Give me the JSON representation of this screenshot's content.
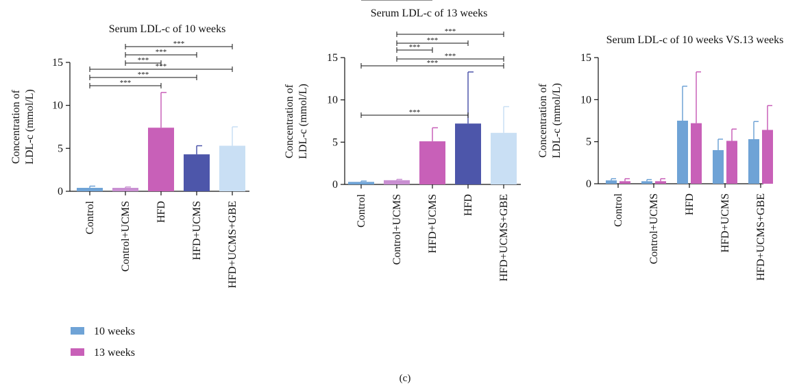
{
  "chart_data": [
    {
      "type": "bar",
      "title": "Serum LDL-c of 10 weeks",
      "ylabel": [
        "Concentration of",
        "LDL-c (mmol/L)"
      ],
      "ylim": [
        0,
        15
      ],
      "yticks": [
        "0",
        "5",
        "10",
        "15"
      ],
      "categories": [
        "Control",
        "Control+UCMS",
        "HFD",
        "HFD+UCMS",
        "HFD+UCMS+GBE"
      ],
      "values": [
        0.4,
        0.4,
        7.4,
        4.3,
        5.3
      ],
      "errors": [
        0.2,
        0.1,
        4.1,
        1.0,
        2.2
      ],
      "colors": [
        "#6fa3d6",
        "#c98fd2",
        "#c860b8",
        "#4d56aa",
        "#c9dff4"
      ],
      "comparisons": [
        {
          "from": 1,
          "to": 4,
          "label": "***"
        },
        {
          "from": 1,
          "to": 3,
          "label": "***"
        },
        {
          "from": 1,
          "to": 2,
          "label": "***"
        },
        {
          "from": 0,
          "to": 4,
          "label": "***"
        },
        {
          "from": 0,
          "to": 3,
          "label": "***"
        },
        {
          "from": 0,
          "to": 2,
          "label": "***"
        }
      ]
    },
    {
      "type": "bar",
      "title": "Serum LDL-c of 13 weeks",
      "ylabel": [
        "Concentration of",
        "LDL-c (mmol/L)"
      ],
      "ylim": [
        0,
        15
      ],
      "yticks": [
        "0",
        "5",
        "10",
        "15"
      ],
      "categories": [
        "Control",
        "Control+UCMS",
        "HFD+UCMS",
        "HFD",
        "HFD+UCMS+GBE"
      ],
      "values": [
        0.3,
        0.5,
        5.1,
        7.2,
        6.1
      ],
      "errors": [
        0.1,
        0.1,
        1.6,
        6.1,
        3.1
      ],
      "colors": [
        "#6fa3d6",
        "#c98fd2",
        "#c860b8",
        "#4d56aa",
        "#c9dff4"
      ],
      "comparisons": [
        {
          "from": 1,
          "to": 4,
          "label": "***"
        },
        {
          "from": 1,
          "to": 3,
          "label": "***"
        },
        {
          "from": 1,
          "to": 2,
          "label": "***"
        },
        {
          "from": 1,
          "to": 4,
          "label": "***"
        },
        {
          "from": 0,
          "to": 4,
          "label": "***"
        },
        {
          "from": 0,
          "to": 3,
          "label": "***"
        },
        {
          "from": 0,
          "to": 2,
          "label": "***"
        }
      ]
    },
    {
      "type": "bar",
      "title": "Serum LDL-c of 10 weeks VS.13 weeks",
      "ylabel": [
        "Concentration of",
        "LDL-c (mmol/L)"
      ],
      "ylim": [
        0,
        15
      ],
      "yticks": [
        "0",
        "5",
        "10",
        "15"
      ],
      "categories": [
        "Control",
        "Control+UCMS",
        "HFD",
        "HFD+UCMS",
        "HFD+UCMS+GBE"
      ],
      "series": [
        {
          "name": "10 weeks",
          "color": "#6fa3d6",
          "values": [
            0.4,
            0.3,
            7.5,
            4.0,
            5.3
          ],
          "errors": [
            0.2,
            0.2,
            4.1,
            1.3,
            2.1
          ]
        },
        {
          "name": "13 weeks",
          "color": "#c860b8",
          "values": [
            0.3,
            0.3,
            7.2,
            5.1,
            6.4
          ],
          "errors": [
            0.3,
            0.3,
            6.1,
            1.4,
            2.9
          ]
        }
      ]
    }
  ],
  "legend": [
    {
      "label": "10 weeks",
      "color": "#6fa3d6"
    },
    {
      "label": "13 weeks",
      "color": "#c860b8"
    }
  ],
  "caption": "(c)"
}
